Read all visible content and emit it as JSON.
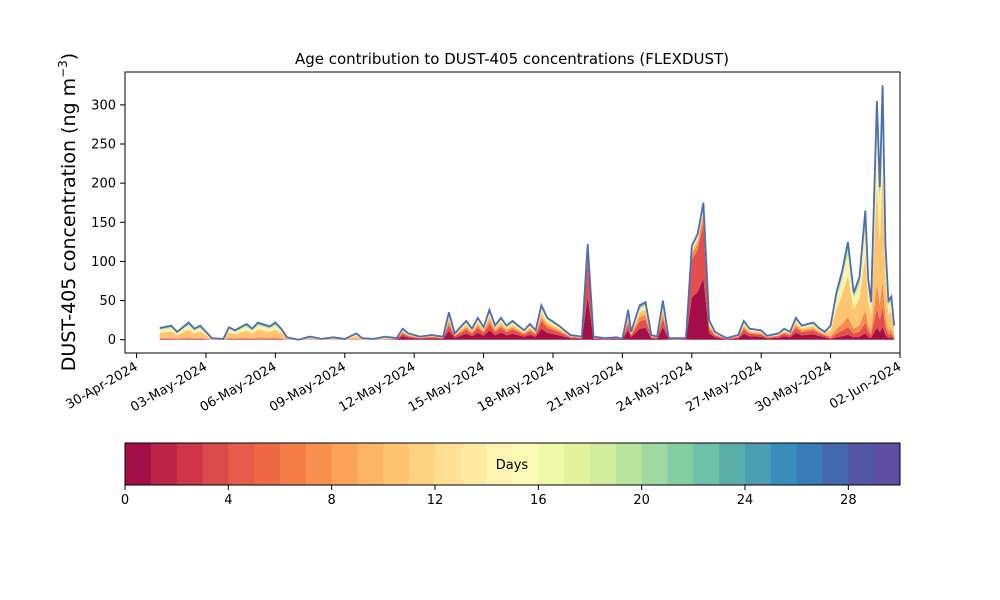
{
  "chart_data": {
    "type": "area",
    "title": "Age contribution to DUST-405 concentrations (FLEXDUST)",
    "ylabel": "DUST-405 concentration (ng m",
    "ylabel_exponent": "−3",
    "ylabel_suffix": ")",
    "xlabel": "",
    "x_range": [
      "2024-04-29T12:00",
      "2024-06-02T00:00"
    ],
    "ylim": [
      -17,
      342
    ],
    "y_ticks": [
      0,
      50,
      100,
      150,
      200,
      250,
      300
    ],
    "x_ticks": [
      "30-Apr-2024",
      "03-May-2024",
      "06-May-2024",
      "09-May-2024",
      "12-May-2024",
      "15-May-2024",
      "18-May-2024",
      "21-May-2024",
      "24-May-2024",
      "27-May-2024",
      "30-May-2024",
      "02-Jun-2024"
    ],
    "x_tick_dates": [
      "2024-04-30",
      "2024-05-03",
      "2024-05-06",
      "2024-05-09",
      "2024-05-12",
      "2024-05-15",
      "2024-05-18",
      "2024-05-21",
      "2024-05-24",
      "2024-05-27",
      "2024-05-30",
      "2024-06-02"
    ],
    "grid": false,
    "total_line_color": "#4a6fb5",
    "colorbar": {
      "label": "Days",
      "min": 0,
      "max": 30,
      "ticks": [
        0,
        4,
        8,
        12,
        16,
        20,
        24,
        28
      ],
      "colors": [
        "#a50f47",
        "#bb2347",
        "#cf3547",
        "#db4a4a",
        "#e75a4c",
        "#ee6a47",
        "#f47c48",
        "#f8904f",
        "#fca35a",
        "#fdb465",
        "#fec571",
        "#fed283",
        "#fedf94",
        "#fee9a2",
        "#fef4b2",
        "#fafcb6",
        "#eef8a8",
        "#e2f39b",
        "#d0ec9c",
        "#b9e39d",
        "#9fd8a0",
        "#84cda3",
        "#6ec1a6",
        "#5bafab",
        "#4a9db2",
        "#3a8cba",
        "#387bb7",
        "#4468ae",
        "#5256a5",
        "#5e4fa2"
      ]
    },
    "series_bands": [
      "0–4 days",
      "4–8 days",
      "8–12 days",
      "12–16 days",
      "16–20 days",
      "20–24 days",
      "24–28 days",
      "28–30 days"
    ],
    "band_colors": [
      "#a50f47",
      "#e34f4a",
      "#f68a4d",
      "#fdc572",
      "#fef0ad",
      "#d6ee9c",
      "#7cc9a4",
      "#4a78b3"
    ],
    "total": [
      [
        "2024-05-01T00:00",
        15
      ],
      [
        "2024-05-01T12:00",
        18
      ],
      [
        "2024-05-01T18:00",
        10
      ],
      [
        "2024-05-02T06:00",
        22
      ],
      [
        "2024-05-02T12:00",
        14
      ],
      [
        "2024-05-02T18:00",
        18
      ],
      [
        "2024-05-03T00:00",
        10
      ],
      [
        "2024-05-03T06:00",
        2
      ],
      [
        "2024-05-03T18:00",
        1
      ],
      [
        "2024-05-04T00:00",
        16
      ],
      [
        "2024-05-04T06:00",
        12
      ],
      [
        "2024-05-04T18:00",
        20
      ],
      [
        "2024-05-05T00:00",
        14
      ],
      [
        "2024-05-05T06:00",
        22
      ],
      [
        "2024-05-05T18:00",
        17
      ],
      [
        "2024-05-06T00:00",
        22
      ],
      [
        "2024-05-06T06:00",
        14
      ],
      [
        "2024-05-06T12:00",
        3
      ],
      [
        "2024-05-07T00:00",
        0
      ],
      [
        "2024-05-07T12:00",
        4
      ],
      [
        "2024-05-08T00:00",
        1
      ],
      [
        "2024-05-08T12:00",
        3
      ],
      [
        "2024-05-09T00:00",
        1
      ],
      [
        "2024-05-09T12:00",
        8
      ],
      [
        "2024-05-09T18:00",
        2
      ],
      [
        "2024-05-10T06:00",
        1
      ],
      [
        "2024-05-10T18:00",
        4
      ],
      [
        "2024-05-11T06:00",
        2
      ],
      [
        "2024-05-11T12:00",
        14
      ],
      [
        "2024-05-11T18:00",
        8
      ],
      [
        "2024-05-12T06:00",
        4
      ],
      [
        "2024-05-12T18:00",
        6
      ],
      [
        "2024-05-13T06:00",
        4
      ],
      [
        "2024-05-13T12:00",
        35
      ],
      [
        "2024-05-13T18:00",
        8
      ],
      [
        "2024-05-14T06:00",
        24
      ],
      [
        "2024-05-14T12:00",
        14
      ],
      [
        "2024-05-14T18:00",
        28
      ],
      [
        "2024-05-15T00:00",
        16
      ],
      [
        "2024-05-15T06:00",
        38
      ],
      [
        "2024-05-15T12:00",
        18
      ],
      [
        "2024-05-15T18:00",
        28
      ],
      [
        "2024-05-16T00:00",
        18
      ],
      [
        "2024-05-16T06:00",
        24
      ],
      [
        "2024-05-16T18:00",
        12
      ],
      [
        "2024-05-17T00:00",
        20
      ],
      [
        "2024-05-17T06:00",
        12
      ],
      [
        "2024-05-17T12:00",
        44
      ],
      [
        "2024-05-17T18:00",
        28
      ],
      [
        "2024-05-18T06:00",
        18
      ],
      [
        "2024-05-18T18:00",
        6
      ],
      [
        "2024-05-19T06:00",
        4
      ],
      [
        "2024-05-19T12:00",
        122
      ],
      [
        "2024-05-19T18:00",
        4
      ],
      [
        "2024-05-20T06:00",
        2
      ],
      [
        "2024-05-20T18:00",
        3
      ],
      [
        "2024-05-21T00:00",
        1
      ],
      [
        "2024-05-21T06:00",
        38
      ],
      [
        "2024-05-21T09:00",
        10
      ],
      [
        "2024-05-21T18:00",
        44
      ],
      [
        "2024-05-22T00:00",
        48
      ],
      [
        "2024-05-22T06:00",
        6
      ],
      [
        "2024-05-22T12:00",
        4
      ],
      [
        "2024-05-22T18:00",
        50
      ],
      [
        "2024-05-23T00:00",
        2
      ],
      [
        "2024-05-23T18:00",
        2
      ],
      [
        "2024-05-24T00:00",
        120
      ],
      [
        "2024-05-24T06:00",
        135
      ],
      [
        "2024-05-24T12:00",
        175
      ],
      [
        "2024-05-24T18:00",
        25
      ],
      [
        "2024-05-25T00:00",
        10
      ],
      [
        "2024-05-25T12:00",
        2
      ],
      [
        "2024-05-26T00:00",
        6
      ],
      [
        "2024-05-26T06:00",
        24
      ],
      [
        "2024-05-26T12:00",
        14
      ],
      [
        "2024-05-27T00:00",
        12
      ],
      [
        "2024-05-27T06:00",
        5
      ],
      [
        "2024-05-27T18:00",
        8
      ],
      [
        "2024-05-28T00:00",
        14
      ],
      [
        "2024-05-28T06:00",
        10
      ],
      [
        "2024-05-28T12:00",
        28
      ],
      [
        "2024-05-28T18:00",
        18
      ],
      [
        "2024-05-29T06:00",
        22
      ],
      [
        "2024-05-29T12:00",
        15
      ],
      [
        "2024-05-29T18:00",
        10
      ],
      [
        "2024-05-30T00:00",
        18
      ],
      [
        "2024-05-30T06:00",
        60
      ],
      [
        "2024-05-30T12:00",
        88
      ],
      [
        "2024-05-30T18:00",
        125
      ],
      [
        "2024-05-31T00:00",
        60
      ],
      [
        "2024-05-31T06:00",
        80
      ],
      [
        "2024-05-31T12:00",
        165
      ],
      [
        "2024-05-31T15:00",
        78
      ],
      [
        "2024-05-31T18:00",
        48
      ],
      [
        "2024-06-01T00:00",
        305
      ],
      [
        "2024-06-01T03:00",
        195
      ],
      [
        "2024-06-01T06:00",
        325
      ],
      [
        "2024-06-01T09:00",
        120
      ],
      [
        "2024-06-01T12:00",
        50
      ],
      [
        "2024-06-01T15:00",
        55
      ],
      [
        "2024-06-01T18:00",
        18
      ]
    ]
  }
}
